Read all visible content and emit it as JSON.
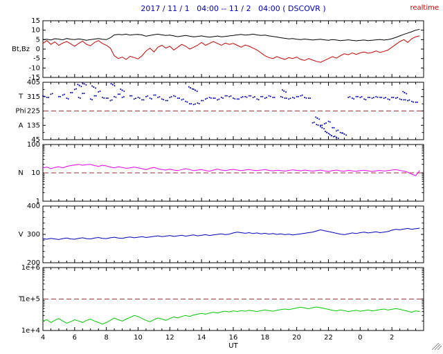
{
  "header": {
    "title": "2017 / 11 / 1   04:00 -- 11 / 2   04:00 ( DSCOVR )",
    "title_color": "#0000bb",
    "status": "realtime",
    "status_color": "#cc0000"
  },
  "chart_data": {
    "type": "line",
    "title": "2017 / 11 / 1   04:00 -- 11 / 2   04:00 ( DSCOVR )",
    "xlabel": "UT",
    "x_range": [
      4,
      28
    ],
    "x_start": 4,
    "x_step": 0.25,
    "x_minor_step": 0.5,
    "x_major_ticks": [
      4,
      6,
      8,
      10,
      12,
      14,
      16,
      18,
      20,
      22,
      24,
      26
    ],
    "x_major_labels": [
      "4",
      "6",
      "8",
      "10",
      "12",
      "14",
      "16",
      "18",
      "20",
      "22",
      "0",
      "2"
    ],
    "dashed_color": "#993333",
    "axis_color": "#000000",
    "panels": [
      {
        "id": "imf",
        "axis_labels": [
          "Bt,Bz"
        ],
        "scale": "linear",
        "ymin": -15,
        "ymax": 15,
        "yticks": [
          {
            "v": 15,
            "label": "15"
          },
          {
            "v": 10,
            "label": "10"
          },
          {
            "v": 5,
            "label": "5"
          },
          {
            "v": 0,
            "label": "0"
          },
          {
            "v": -5,
            "label": "-5"
          },
          {
            "v": -10,
            "label": "-10"
          },
          {
            "v": -15,
            "label": "-15"
          }
        ],
        "series": [
          {
            "name": "Bt",
            "color": "#000000",
            "mode": "line",
            "values": [
              5.0,
              5.2,
              4.8,
              5.5,
              5.3,
              4.9,
              5.6,
              5.2,
              5.0,
              5.4,
              5.1,
              4.7,
              5.0,
              5.3,
              5.6,
              5.2,
              5.0,
              6.0,
              7.5,
              7.8,
              7.6,
              7.9,
              7.4,
              7.7,
              7.8,
              7.5,
              6.8,
              7.2,
              7.6,
              7.9,
              7.5,
              7.2,
              7.4,
              7.0,
              6.6,
              6.9,
              7.2,
              6.8,
              6.5,
              6.7,
              7.0,
              6.6,
              6.3,
              6.6,
              6.9,
              6.5,
              6.7,
              7.0,
              7.2,
              7.5,
              7.8,
              7.4,
              7.6,
              7.9,
              7.5,
              7.2,
              7.4,
              7.0,
              6.7,
              6.4,
              6.0,
              5.7,
              5.4,
              5.6,
              5.2,
              5.0,
              5.3,
              5.1,
              4.8,
              5.0,
              5.2,
              4.9,
              4.7,
              5.0,
              4.8,
              4.5,
              4.7,
              4.9,
              4.6,
              4.4,
              4.6,
              4.8,
              4.5,
              4.7,
              4.9,
              5.1,
              4.8,
              5.0,
              5.5,
              6.2,
              7.0,
              7.8,
              8.5,
              9.2,
              10.0,
              10.5,
              null
            ]
          },
          {
            "name": "Bz",
            "color": "#cc0000",
            "mode": "line",
            "values": [
              3.0,
              4.5,
              2.5,
              3.8,
              2.0,
              3.2,
              4.0,
              2.8,
              1.5,
              3.0,
              4.2,
              2.5,
              1.8,
              3.5,
              4.5,
              3.0,
              2.0,
              0.5,
              -3.5,
              -5.0,
              -4.2,
              -5.5,
              -3.8,
              -4.5,
              -5.2,
              -3.5,
              -1.0,
              0.5,
              -1.5,
              1.0,
              2.0,
              0.5,
              1.5,
              -0.5,
              1.0,
              2.5,
              1.5,
              0.0,
              1.0,
              2.0,
              3.5,
              2.0,
              3.0,
              4.0,
              3.0,
              2.0,
              3.2,
              2.5,
              3.0,
              2.0,
              1.0,
              2.2,
              1.5,
              0.5,
              -0.5,
              -2.0,
              -3.5,
              -4.5,
              -5.0,
              -4.0,
              -4.8,
              -5.5,
              -4.5,
              -5.0,
              -4.2,
              -5.5,
              -6.0,
              -5.0,
              -5.8,
              -6.5,
              -7.0,
              -6.0,
              -5.0,
              -4.0,
              -4.8,
              -3.5,
              -2.5,
              -3.0,
              -2.0,
              -2.8,
              -2.0,
              -1.5,
              -2.2,
              -1.8,
              -1.0,
              -1.8,
              -1.2,
              -0.5,
              1.0,
              2.5,
              4.0,
              5.0,
              3.5,
              5.5,
              6.5,
              7.0,
              null
            ]
          }
        ]
      },
      {
        "id": "phi",
        "axis_labels": [
          "T",
          "Phi",
          "A"
        ],
        "scale": "linear",
        "ymin": 45,
        "ymax": 405,
        "y_minor_step": 45,
        "dashed_y": 225,
        "yticks": [
          {
            "v": 405,
            "label": "405"
          },
          {
            "v": 315,
            "label": "315"
          },
          {
            "v": 225,
            "label": "225"
          },
          {
            "v": 135,
            "label": "135"
          },
          {
            "v": 45,
            "label": "45"
          }
        ],
        "series": [
          {
            "name": "Phi",
            "color": "#0000bb",
            "mode": "scatter",
            "values": [
              320,
              310,
              330,
              null,
              315,
              325,
              305,
              340,
              360,
              310,
              335,
              null,
              300,
              320,
              345,
              310,
              305,
              290,
              315,
              330,
              310,
              null,
              320,
              300,
              310,
              295,
              315,
              305,
              325,
              310,
              300,
              290,
              310,
              320,
              305,
              295,
              285,
              270,
              265,
              275,
              290,
              300,
              310,
              305,
              295,
              310,
              320,
              315,
              305,
              300,
              310,
              315,
              320,
              310,
              300,
              315,
              305,
              320,
              310,
              null,
              315,
              305,
              300,
              310,
              315,
              320,
              310,
              305,
              150,
              140,
              135,
              145,
              160,
              120,
              100,
              90,
              null,
              310,
              305,
              315,
              310,
              300,
              310,
              305,
              315,
              310,
              305,
              300,
              310,
              305,
              300,
              295,
              290,
              285,
              280,
              null,
              null
            ]
          },
          {
            "name": "Phi-scatter",
            "color": "#0000bb",
            "mode": "points",
            "points": [
              [
                6.3,
                385
              ],
              [
                6.6,
                395
              ],
              [
                7.2,
                375
              ],
              [
                8.4,
                390
              ],
              [
                9.0,
                355
              ],
              [
                13.3,
                370
              ],
              [
                13.6,
                355
              ],
              [
                19.2,
                350
              ],
              [
                21.3,
                180
              ],
              [
                21.6,
                120
              ],
              [
                21.9,
                90
              ],
              [
                22.2,
                70
              ],
              [
                22.5,
                60
              ],
              [
                23.0,
                80
              ],
              [
                26.8,
                340
              ]
            ]
          }
        ]
      },
      {
        "id": "density",
        "axis_labels": [
          "N"
        ],
        "scale": "log",
        "ymin": 1,
        "ymax": 100,
        "dashed_y": 10,
        "yticks": [
          {
            "v": 100,
            "label": "100"
          },
          {
            "v": 10,
            "label": "10"
          },
          {
            "v": 1,
            "label": "1"
          }
        ],
        "series": [
          {
            "name": "N",
            "color": "#ee00ee",
            "mode": "line",
            "values": [
              15,
              16,
              14,
              15.5,
              16.5,
              15,
              17,
              18,
              19,
              20,
              18.5,
              19.5,
              20,
              18,
              17,
              18.5,
              17.5,
              16,
              15,
              16.5,
              15.5,
              14.5,
              15,
              16,
              15,
              14,
              13,
              14.5,
              15.5,
              14,
              13,
              12.5,
              13.5,
              12.5,
              12,
              13,
              14,
              13,
              12,
              12.5,
              13,
              12,
              11.5,
              12.5,
              13.5,
              12.5,
              12,
              12.8,
              13.2,
              12.5,
              12,
              12.6,
              13,
              12.4,
              12,
              12.5,
              13,
              12.2,
              11.8,
              12.4,
              12,
              11.5,
              12.2,
              12.8,
              12.2,
              11.8,
              12.5,
              12,
              11.5,
              12,
              12.5,
              11.8,
              11.2,
              12,
              12.5,
              11.8,
              11.5,
              12.2,
              11.8,
              11.4,
              12,
              12.4,
              11.8,
              11.2,
              11.8,
              12.2,
              11.6,
              12,
              12.5,
              13,
              12.2,
              11.5,
              10.5,
              9.0,
              8.0,
              12,
              null
            ]
          }
        ]
      },
      {
        "id": "velocity",
        "axis_labels": [
          "V"
        ],
        "scale": "linear",
        "ymin": 200,
        "ymax": 400,
        "y_minor_step": 20,
        "yticks": [
          {
            "v": 400,
            "label": "400"
          },
          {
            "v": 300,
            "label": "300"
          },
          {
            "v": 200,
            "label": "200"
          }
        ],
        "series": [
          {
            "name": "V",
            "color": "#0000bb",
            "mode": "line",
            "values": [
              285,
              283,
              286,
              284,
              282,
              285,
              287,
              284,
              283,
              286,
              288,
              285,
              284,
              287,
              289,
              286,
              285,
              288,
              290,
              287,
              286,
              289,
              291,
              288,
              290,
              292,
              289,
              291,
              293,
              295,
              292,
              294,
              296,
              293,
              295,
              297,
              294,
              296,
              298,
              295,
              297,
              299,
              296,
              298,
              300,
              302,
              299,
              301,
              305,
              308,
              306,
              304,
              306,
              303,
              305,
              302,
              304,
              301,
              303,
              300,
              302,
              299,
              301,
              298,
              300,
              302,
              304,
              306,
              308,
              312,
              316,
              313,
              310,
              307,
              304,
              301,
              299,
              302,
              305,
              303,
              306,
              308,
              305,
              307,
              309,
              306,
              308,
              310,
              315,
              318,
              316,
              319,
              321,
              318,
              320,
              322,
              null
            ]
          }
        ]
      },
      {
        "id": "temperature",
        "axis_labels": [
          "T"
        ],
        "scale": "log",
        "ymin": 10000,
        "ymax": 1000000,
        "dashed_y": 100000,
        "yticks": [
          {
            "v": 1000000,
            "label": "1e+6"
          },
          {
            "v": 100000,
            "label": "1e+5"
          },
          {
            "v": 10000,
            "label": "1e+4"
          }
        ],
        "series": [
          {
            "name": "T",
            "color": "#00cc00",
            "mode": "line",
            "values": [
              20000,
              22000,
              18000,
              21000,
              24000,
              20000,
              17000,
              19000,
              22000,
              20000,
              18000,
              21000,
              23000,
              20000,
              18000,
              16000,
              18000,
              21000,
              25000,
              22000,
              20000,
              23000,
              26000,
              30000,
              28000,
              24000,
              21000,
              19000,
              22000,
              25000,
              23000,
              21000,
              24000,
              27000,
              25000,
              28000,
              30000,
              28000,
              31000,
              33000,
              35000,
              33000,
              36000,
              38000,
              36000,
              39000,
              41000,
              39000,
              42000,
              40000,
              43000,
              41000,
              44000,
              42000,
              40000,
              43000,
              45000,
              43000,
              41000,
              44000,
              46000,
              48000,
              46000,
              49000,
              52000,
              55000,
              52000,
              49000,
              53000,
              56000,
              53000,
              50000,
              47000,
              44000,
              42000,
              45000,
              43000,
              40000,
              42000,
              44000,
              41000,
              43000,
              45000,
              42000,
              44000,
              46000,
              48000,
              45000,
              47000,
              50000,
              47000,
              44000,
              41000,
              38000,
              42000,
              40000,
              null
            ]
          }
        ]
      }
    ]
  }
}
